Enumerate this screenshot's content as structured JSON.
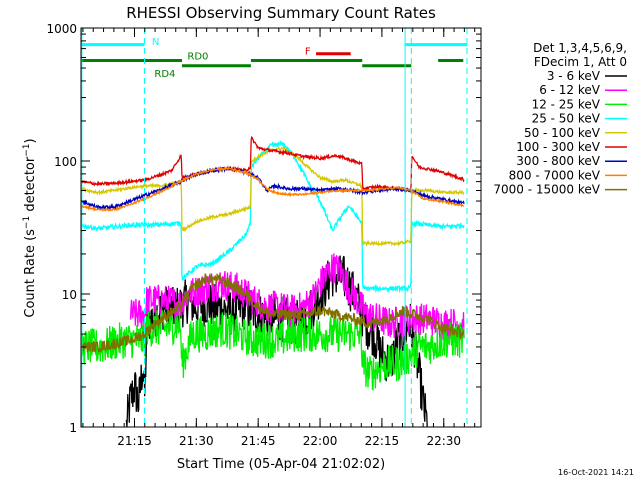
{
  "colors": {
    "c3_6": "#000000",
    "c6_12": "#ff00ff",
    "c12_25": "#00ee00",
    "c25_50": "#00ffff",
    "c50_100": "#d4c800",
    "c100_300": "#e00000",
    "c300_800": "#0000c0",
    "c800_7000": "#ff8000",
    "c7000_15000": "#807000",
    "flag_cyan": "#00ffff",
    "flag_green": "#008000",
    "flag_red": "#e00000"
  },
  "chart_data": {
    "type": "line",
    "title": "RHESSI Observing Summary Count Rates",
    "xlabel": "Start Time (05-Apr-04 21:02:02)",
    "ylabel_main": "Count Rate (s",
    "ylabel_sup": "−1",
    "ylabel_rest": " detector",
    "ylabel_end": ")",
    "yscale": "log",
    "ylim": [
      1,
      1000
    ],
    "xlim_minutes": [
      0,
      97
    ],
    "x_ticks": [
      {
        "label": "21:15",
        "min": 12.97
      },
      {
        "label": "21:30",
        "min": 27.97
      },
      {
        "label": "21:45",
        "min": 42.97
      },
      {
        "label": "22:00",
        "min": 57.97
      },
      {
        "label": "22:15",
        "min": 72.97
      },
      {
        "label": "22:30",
        "min": 87.97
      }
    ],
    "y_ticks": [
      {
        "label": "1",
        "v": 1
      },
      {
        "label": "10",
        "v": 10
      },
      {
        "label": "100",
        "v": 100
      },
      {
        "label": "1000",
        "v": 1000
      }
    ],
    "legend_header": [
      "Det 1,3,4,5,6,9,",
      "FDecim 1, Att 0"
    ],
    "legend_placement": "top-right",
    "flags": [
      {
        "name": "N",
        "y": 750,
        "segments": [
          [
            0,
            15.4
          ],
          [
            78.6,
            93.6
          ]
        ],
        "color": "flag_cyan"
      },
      {
        "name": "RD0",
        "y": 570,
        "segments": [
          [
            0,
            24.5
          ],
          [
            41.2,
            68.2
          ],
          [
            86.6,
            92.7
          ]
        ],
        "color": "flag_green"
      },
      {
        "name": "RD4",
        "y": 520,
        "segments": [
          [
            24.5,
            41.2
          ],
          [
            68.2,
            80.1
          ]
        ],
        "color": "flag_green"
      },
      {
        "name": "F",
        "y": 640,
        "segments": [
          [
            57.0,
            65.4
          ]
        ],
        "color": "flag_red"
      }
    ],
    "flag_labels": [
      {
        "text": "N",
        "min": 17.2,
        "y": 800,
        "color": "flag_cyan"
      },
      {
        "text": "RD0",
        "min": 25.8,
        "y": 620,
        "color": "flag_green"
      },
      {
        "text": "RD4",
        "min": 17.8,
        "y": 460,
        "color": "flag_green"
      },
      {
        "text": "F",
        "min": 54.3,
        "y": 680,
        "color": "flag_red"
      }
    ],
    "vlines": [
      {
        "min": 0.2,
        "style": "solid"
      },
      {
        "min": 15.4,
        "style": "dashed"
      },
      {
        "min": 78.6,
        "style": "solid"
      },
      {
        "min": 80.1,
        "style": "dashed"
      },
      {
        "min": 93.6,
        "style": "dashed"
      }
    ],
    "series": [
      {
        "name": "3 - 6 keV",
        "color": "c3_6",
        "noise": 0.5,
        "points": [
          [
            11,
            1
          ],
          [
            12,
            1.6
          ],
          [
            13,
            2
          ],
          [
            14,
            1.5
          ],
          [
            15,
            3
          ],
          [
            15.4,
            1.6
          ],
          [
            16,
            6
          ],
          [
            18,
            7
          ],
          [
            20,
            8
          ],
          [
            22,
            7.5
          ],
          [
            24,
            8
          ],
          [
            26,
            9
          ],
          [
            28,
            8
          ],
          [
            30,
            8.5
          ],
          [
            33,
            8
          ],
          [
            36,
            7.5
          ],
          [
            40,
            8
          ],
          [
            43,
            7
          ],
          [
            46,
            6.5
          ],
          [
            49,
            6.5
          ],
          [
            52,
            6
          ],
          [
            55,
            7
          ],
          [
            58,
            10
          ],
          [
            61,
            14
          ],
          [
            64,
            13
          ],
          [
            67,
            9
          ],
          [
            69,
            6
          ],
          [
            71,
            5
          ],
          [
            73,
            3.5
          ],
          [
            75,
            3
          ],
          [
            77,
            4.5
          ],
          [
            80,
            6
          ],
          [
            82,
            2.5
          ],
          [
            83,
            1.5
          ],
          [
            84,
            1
          ]
        ]
      },
      {
        "name": "6 - 12 keV",
        "color": "c6_12",
        "noise": 0.35,
        "points": [
          [
            12,
            7
          ],
          [
            15.4,
            7
          ],
          [
            16,
            9
          ],
          [
            20,
            9
          ],
          [
            24,
            8.5
          ],
          [
            26,
            10
          ],
          [
            30,
            11
          ],
          [
            34,
            12
          ],
          [
            38,
            11
          ],
          [
            42,
            9
          ],
          [
            45,
            8
          ],
          [
            48,
            8
          ],
          [
            51,
            7.5
          ],
          [
            54,
            8
          ],
          [
            56,
            9
          ],
          [
            58,
            12
          ],
          [
            61,
            16
          ],
          [
            63,
            15
          ],
          [
            65,
            11
          ],
          [
            67,
            9
          ],
          [
            69,
            7
          ],
          [
            72,
            6.5
          ],
          [
            75,
            6
          ],
          [
            80,
            6.5
          ],
          [
            84,
            6.5
          ],
          [
            88,
            6
          ],
          [
            93,
            6
          ]
        ]
      },
      {
        "name": "12 - 25 keV",
        "color": "c12_25",
        "noise": 0.4,
        "points": [
          [
            0,
            4
          ],
          [
            5,
            4
          ],
          [
            10,
            4.5
          ],
          [
            15.4,
            4.5
          ],
          [
            16,
            5.5
          ],
          [
            20,
            5.5
          ],
          [
            24,
            6
          ],
          [
            24.5,
            3
          ],
          [
            27,
            5
          ],
          [
            30,
            5
          ],
          [
            34,
            5.5
          ],
          [
            38,
            5
          ],
          [
            42,
            4.5
          ],
          [
            45,
            4.5
          ],
          [
            48,
            4.5
          ],
          [
            52,
            5
          ],
          [
            56,
            5
          ],
          [
            60,
            5
          ],
          [
            64,
            5
          ],
          [
            68,
            5
          ],
          [
            68.2,
            3
          ],
          [
            70,
            2.5
          ],
          [
            74,
            3
          ],
          [
            77,
            3
          ],
          [
            80,
            3.5
          ],
          [
            82,
            4
          ],
          [
            84,
            4
          ],
          [
            88,
            4.5
          ],
          [
            93,
            4.5
          ]
        ]
      },
      {
        "name": "25 - 50 keV",
        "color": "c25_50",
        "noise": 0.05,
        "points": [
          [
            0,
            33
          ],
          [
            4,
            31
          ],
          [
            8,
            32
          ],
          [
            12,
            33
          ],
          [
            15.4,
            33
          ],
          [
            17,
            33
          ],
          [
            24.3,
            34
          ],
          [
            24.5,
            13
          ],
          [
            28,
            16
          ],
          [
            32,
            17
          ],
          [
            36,
            21
          ],
          [
            40,
            28
          ],
          [
            41.1,
            34
          ],
          [
            41.3,
            90
          ],
          [
            43,
            105
          ],
          [
            46,
            130
          ],
          [
            49,
            135
          ],
          [
            52,
            105
          ],
          [
            55,
            70
          ],
          [
            58,
            50
          ],
          [
            61,
            30
          ],
          [
            63,
            38
          ],
          [
            65,
            46
          ],
          [
            68.1,
            34
          ],
          [
            68.3,
            11
          ],
          [
            72,
            11
          ],
          [
            77,
            11
          ],
          [
            80,
            11
          ],
          [
            80.2,
            34
          ],
          [
            84,
            33
          ],
          [
            88,
            32
          ],
          [
            93,
            33
          ]
        ]
      },
      {
        "name": "50 - 100 keV",
        "color": "c50_100",
        "noise": 0.03,
        "points": [
          [
            0,
            62
          ],
          [
            4,
            58
          ],
          [
            8,
            60
          ],
          [
            12,
            63
          ],
          [
            15.4,
            65
          ],
          [
            19,
            65
          ],
          [
            24.3,
            70
          ],
          [
            24.5,
            30
          ],
          [
            28,
            35
          ],
          [
            32,
            38
          ],
          [
            36,
            40
          ],
          [
            41.1,
            45
          ],
          [
            41.3,
            100
          ],
          [
            43,
            108
          ],
          [
            46,
            120
          ],
          [
            49,
            125
          ],
          [
            52,
            110
          ],
          [
            55,
            90
          ],
          [
            58,
            75
          ],
          [
            61,
            70
          ],
          [
            64,
            72
          ],
          [
            68.1,
            65
          ],
          [
            68.3,
            24
          ],
          [
            72,
            24
          ],
          [
            77,
            24
          ],
          [
            80,
            25
          ],
          [
            80.2,
            60
          ],
          [
            84,
            60
          ],
          [
            88,
            58
          ],
          [
            93,
            58
          ]
        ]
      },
      {
        "name": "100 - 300 keV",
        "color": "c100_300",
        "noise": 0.03,
        "points": [
          [
            0,
            70
          ],
          [
            4,
            67
          ],
          [
            8,
            68
          ],
          [
            12,
            70
          ],
          [
            15.4,
            72
          ],
          [
            19,
            78
          ],
          [
            22,
            85
          ],
          [
            24.3,
            110
          ],
          [
            24.5,
            75
          ],
          [
            28,
            80
          ],
          [
            32,
            85
          ],
          [
            36,
            88
          ],
          [
            40,
            85
          ],
          [
            41.1,
            90
          ],
          [
            41.3,
            150
          ],
          [
            43,
            125
          ],
          [
            46,
            120
          ],
          [
            50,
            115
          ],
          [
            54,
            108
          ],
          [
            58,
            105
          ],
          [
            62,
            110
          ],
          [
            66,
            100
          ],
          [
            68.1,
            95
          ],
          [
            68.3,
            62
          ],
          [
            72,
            64
          ],
          [
            77,
            62
          ],
          [
            80,
            60
          ],
          [
            80.2,
            110
          ],
          [
            82,
            90
          ],
          [
            86,
            85
          ],
          [
            90,
            78
          ],
          [
            93,
            72
          ]
        ]
      },
      {
        "name": "300 - 800 keV",
        "color": "c300_800",
        "noise": 0.035,
        "points": [
          [
            0,
            50
          ],
          [
            4,
            45
          ],
          [
            8,
            45
          ],
          [
            12,
            50
          ],
          [
            15.4,
            55
          ],
          [
            20,
            62
          ],
          [
            24,
            70
          ],
          [
            28,
            80
          ],
          [
            32,
            85
          ],
          [
            36,
            88
          ],
          [
            40,
            82
          ],
          [
            43,
            75
          ],
          [
            45,
            60
          ],
          [
            47,
            65
          ],
          [
            50,
            62
          ],
          [
            54,
            62
          ],
          [
            58,
            60
          ],
          [
            62,
            62
          ],
          [
            66,
            60
          ],
          [
            68,
            58
          ],
          [
            72,
            60
          ],
          [
            76,
            62
          ],
          [
            80,
            60
          ],
          [
            83,
            55
          ],
          [
            87,
            52
          ],
          [
            93,
            48
          ]
        ]
      },
      {
        "name": "800 - 7000 keV",
        "color": "c800_7000",
        "noise": 0.02,
        "points": [
          [
            0,
            46
          ],
          [
            4,
            43
          ],
          [
            8,
            43
          ],
          [
            12,
            47
          ],
          [
            15.4,
            52
          ],
          [
            20,
            60
          ],
          [
            24,
            70
          ],
          [
            28,
            80
          ],
          [
            32,
            86
          ],
          [
            36,
            88
          ],
          [
            40,
            82
          ],
          [
            43,
            73
          ],
          [
            45,
            62
          ],
          [
            47,
            58
          ],
          [
            50,
            56
          ],
          [
            54,
            56
          ],
          [
            58,
            58
          ],
          [
            62,
            60
          ],
          [
            66,
            60
          ],
          [
            70,
            60
          ],
          [
            74,
            62
          ],
          [
            77,
            63
          ],
          [
            80,
            60
          ],
          [
            83,
            52
          ],
          [
            87,
            50
          ],
          [
            93,
            46
          ]
        ]
      },
      {
        "name": "7000 - 15000 keV",
        "color": "c7000_15000",
        "noise": 0.12,
        "points": [
          [
            0,
            4
          ],
          [
            4,
            4
          ],
          [
            8,
            4.2
          ],
          [
            12,
            4.5
          ],
          [
            15.4,
            5
          ],
          [
            18,
            6
          ],
          [
            21,
            7
          ],
          [
            24,
            8
          ],
          [
            27,
            11
          ],
          [
            30,
            13
          ],
          [
            33,
            13
          ],
          [
            36,
            12
          ],
          [
            40,
            10
          ],
          [
            43,
            8
          ],
          [
            46,
            7
          ],
          [
            50,
            7
          ],
          [
            54,
            7
          ],
          [
            58,
            7.5
          ],
          [
            62,
            7
          ],
          [
            66,
            6.5
          ],
          [
            70,
            6
          ],
          [
            74,
            6.5
          ],
          [
            78,
            7.5
          ],
          [
            81,
            7
          ],
          [
            84,
            6.5
          ],
          [
            88,
            5.5
          ],
          [
            93,
            5
          ]
        ]
      }
    ]
  },
  "footer_date": "16-Oct-2021 14:21"
}
